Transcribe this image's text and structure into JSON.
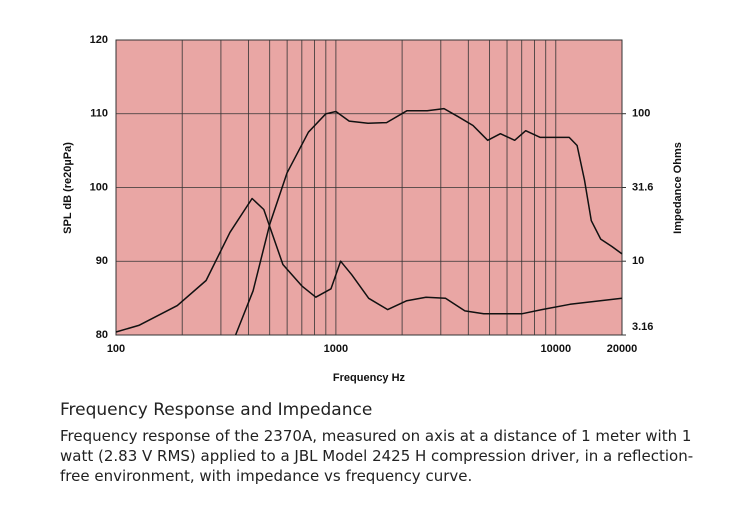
{
  "chart_data": {
    "type": "line",
    "xlabel": "Frequency Hz",
    "ylabel": "SPL  dB (re20µPa)",
    "y2label": "Impedance Ohms",
    "xlim": [
      100,
      20000
    ],
    "xticks": [
      100,
      1000,
      10000,
      20000
    ],
    "xminor": [
      200,
      300,
      400,
      500,
      600,
      700,
      800,
      900,
      2000,
      3000,
      4000,
      5000,
      6000,
      7000,
      8000,
      9000
    ],
    "xscale": "log",
    "ylim": [
      80,
      120
    ],
    "yticks": [
      80,
      90,
      100,
      110,
      120
    ],
    "y2lim": [
      3.16,
      316
    ],
    "y2ticks": [
      3.16,
      10,
      31.6,
      100
    ],
    "y2scale": "log",
    "grid": true,
    "background": "#e9a6a4",
    "series": [
      {
        "name": "SPL",
        "color": "#111111",
        "x": [
          350,
          420,
          500,
          600,
          750,
          900,
          1000,
          1150,
          1400,
          1700,
          2100,
          2600,
          3100,
          3600,
          4200,
          4900,
          5600,
          6500,
          7300,
          8500,
          10000,
          11500,
          12500,
          13500,
          14500,
          16000,
          18000,
          20000
        ],
        "values": [
          80,
          86,
          95,
          102,
          107.5,
          110,
          110.3,
          109,
          108.7,
          108.8,
          110.4,
          110.4,
          110.7,
          109.6,
          108.4,
          106.4,
          107.3,
          106.4,
          107.7,
          106.8,
          106.8,
          106.8,
          105.7,
          101,
          95.5,
          93,
          92,
          91
        ]
      },
      {
        "name": "Impedance",
        "color": "#111111",
        "axis": "y2",
        "x": [
          100,
          127,
          190,
          257,
          330,
          416,
          470,
          574,
          700,
          810,
          950,
          1050,
          1180,
          1410,
          1720,
          2100,
          2570,
          3150,
          3860,
          4700,
          7000,
          8640,
          11600,
          20000
        ],
        "values": [
          3.31,
          3.67,
          5.0,
          7.4,
          15.7,
          26.6,
          22.4,
          9.5,
          6.8,
          5.7,
          6.5,
          10,
          8.1,
          5.6,
          4.7,
          5.4,
          5.7,
          5.6,
          4.6,
          4.4,
          4.4,
          4.7,
          5.1,
          5.6
        ]
      }
    ]
  },
  "caption": {
    "title": "Frequency Response and Impedance",
    "text": "Frequency response of the 2370A, measured on axis at a distance of 1 meter with 1 watt (2.83 V RMS) applied to a JBL Model 2425 H compression driver, in a reflection-free environment, with impedance vs frequency curve."
  }
}
